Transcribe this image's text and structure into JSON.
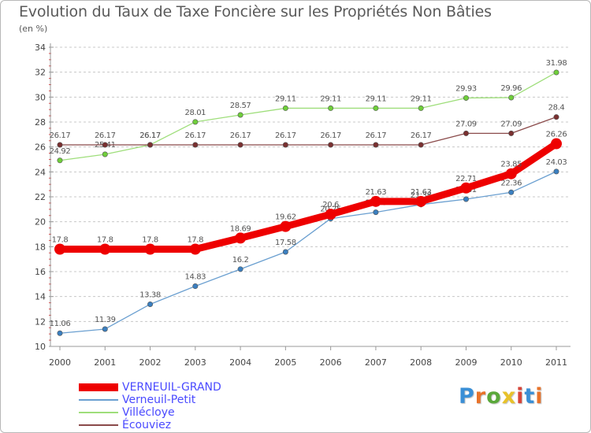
{
  "title": "Evolution du Taux de Taxe Foncière sur les Propriétés Non Bâties",
  "subtitle": "(en %)",
  "logo": {
    "letters": [
      "P",
      "r",
      "o",
      "x",
      "i",
      "t",
      "i"
    ],
    "colors": [
      "#3a8fd6",
      "#e8732a",
      "#5aa83a",
      "#e8c22a",
      "#d6453a",
      "#3a8fd6",
      "#e8732a"
    ]
  },
  "legend": [
    {
      "label": "VERNEUIL-GRAND",
      "color": "#ee0000",
      "weight": "thick"
    },
    {
      "label": "Verneuil-Petit",
      "color": "#6a9fd0",
      "weight": "thin"
    },
    {
      "label": "Villécloye",
      "color": "#9ede7a",
      "weight": "thin"
    },
    {
      "label": "Écouviez",
      "color": "#8a4a4a",
      "weight": "thin"
    }
  ],
  "chart_data": {
    "type": "line",
    "title": "Evolution du Taux de Taxe Foncière sur les Propriétés Non Bâties",
    "ylabel": "(en %)",
    "xlabel": "",
    "x": [
      "2000",
      "2001",
      "2002",
      "2003",
      "2004",
      "2005",
      "2006",
      "2007",
      "2008",
      "2009",
      "2010",
      "2011"
    ],
    "ylim": [
      10,
      34
    ],
    "yticks": [
      "10",
      "12",
      "14",
      "16",
      "18",
      "20",
      "22",
      "24",
      "26",
      "28",
      "30",
      "32",
      "34"
    ],
    "grid": "horizontal dashed",
    "series": [
      {
        "name": "Villécloye",
        "color": "#9ede7a",
        "marker": "#6fcf3a",
        "values": [
          24.92,
          25.41,
          26.17,
          28.01,
          28.57,
          29.11,
          29.11,
          29.11,
          29.11,
          29.93,
          29.96,
          31.98
        ],
        "labels": [
          "24.92",
          "25.41",
          "26.17",
          "28.01",
          "28.57",
          "29.11",
          "29.11",
          "29.11",
          "29.11",
          "29.93",
          "29.96",
          "31.98"
        ]
      },
      {
        "name": "Écouviez",
        "color": "#8a4a4a",
        "marker": "#7a3030",
        "values": [
          26.17,
          26.17,
          26.17,
          26.17,
          26.17,
          26.17,
          26.17,
          26.17,
          26.17,
          27.09,
          27.09,
          28.4
        ],
        "labels": [
          "26.17",
          "26.17",
          "26.17",
          "26.17",
          "26.17",
          "26.17",
          "26.17",
          "26.17",
          "26.17",
          "27.09",
          "27.09",
          "28.4"
        ]
      },
      {
        "name": "Verneuil-Petit",
        "color": "#6a9fd0",
        "marker": "#3a7fc0",
        "values": [
          11.06,
          11.39,
          13.38,
          14.83,
          16.2,
          17.58,
          20.25,
          20.76,
          21.38,
          21.81,
          22.36,
          24.03
        ],
        "labels": [
          "11.06",
          "11.39",
          "13.38",
          "14.83",
          "16.2",
          "17.58",
          "20.25",
          "20.76",
          "21.38",
          "21.81",
          "22.36",
          "24.03"
        ]
      },
      {
        "name": "VERNEUIL-GRAND",
        "color": "#ee0000",
        "marker": "#ee0000",
        "values": [
          17.8,
          17.8,
          17.8,
          17.8,
          18.69,
          19.62,
          20.6,
          21.63,
          21.63,
          22.71,
          23.85,
          26.26
        ],
        "labels": [
          "17.8",
          "17.8",
          "17.8",
          "17.8",
          "18.69",
          "19.62",
          "20.6",
          "21.63",
          "21.63",
          "22.71",
          "23.85",
          "26.26"
        ]
      }
    ]
  }
}
